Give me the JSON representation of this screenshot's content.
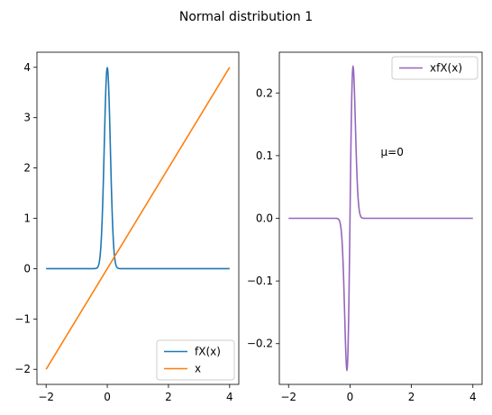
{
  "figure": {
    "title": "Normal distribution 1"
  },
  "chart_data": [
    {
      "type": "line",
      "xlim": [
        -2.3,
        4.3
      ],
      "ylim": [
        -2.3,
        4.3
      ],
      "xticks": [
        -2,
        0,
        2,
        4
      ],
      "yticks": [
        -2,
        -1,
        0,
        1,
        2,
        3,
        4
      ],
      "xtick_labels": [
        "−2",
        "0",
        "2",
        "4"
      ],
      "ytick_labels": [
        "−2",
        "−1",
        "0",
        "1",
        "2",
        "3",
        "4"
      ],
      "legend": {
        "placement": "lower-right"
      },
      "series": [
        {
          "name": "fX(x)",
          "color": "#1f77b4",
          "function": "normal_pdf",
          "mu": 0,
          "sigma": 0.1,
          "x_range": [
            -2,
            4
          ]
        },
        {
          "name": "x",
          "color": "#ff7f0e",
          "function": "identity",
          "x_range": [
            -2,
            4
          ]
        }
      ]
    },
    {
      "type": "line",
      "xlim": [
        -2.3,
        4.3
      ],
      "ylim": [
        -0.265,
        0.265
      ],
      "xticks": [
        -2,
        0,
        2,
        4
      ],
      "yticks": [
        -0.2,
        -0.1,
        0.0,
        0.1,
        0.2
      ],
      "xtick_labels": [
        "−2",
        "0",
        "2",
        "4"
      ],
      "ytick_labels": [
        "−0.2",
        "−0.1",
        "0.0",
        "0.1",
        "0.2"
      ],
      "legend": {
        "placement": "upper-right"
      },
      "annotation": {
        "text": "μ=0",
        "x": 1.0,
        "y": 0.1
      },
      "series": [
        {
          "name": "xfX(x)",
          "color": "#9467bd",
          "function": "x_times_normal_pdf",
          "mu": 0,
          "sigma": 0.1,
          "x_range": [
            -2,
            4
          ]
        }
      ]
    }
  ]
}
